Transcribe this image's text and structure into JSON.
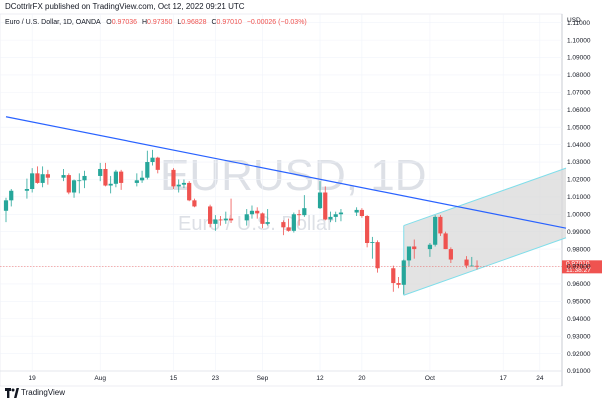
{
  "header": {
    "published_text": "DCottrlrFX published on TradingView.com, Oct 12, 2022 09:21 UTC"
  },
  "legend": {
    "symbol": "Euro / U.S. Dollar, 1D, OANDA",
    "o_label": "O",
    "o_value": "0.97036",
    "h_label": "H",
    "h_value": "0.97350",
    "l_label": "L",
    "l_value": "0.96828",
    "c_label": "C",
    "c_value": "0.97010",
    "change": "−0.00026 (−0.03%)"
  },
  "watermark": {
    "ticker": "EURUSD, 1D",
    "description": "Euro / U.S. Dollar"
  },
  "footer": {
    "brand": "TradingView"
  },
  "colors": {
    "up": "#26a69a",
    "down": "#ef5350",
    "trendline": "#2962ff",
    "channel": "#80deea",
    "channel_fill": "#d9d9d9",
    "price_label": "#ef5350"
  },
  "chart_data": {
    "type": "candlestick",
    "y_axis_currency": "USD",
    "ylim": [
      0.91,
      1.115
    ],
    "y_ticks": [
      0.91,
      0.92,
      0.93,
      0.94,
      0.95,
      0.96,
      0.97,
      0.98,
      0.99,
      1.0,
      1.01,
      1.02,
      1.03,
      1.04,
      1.05,
      1.06,
      1.07,
      1.08,
      1.09,
      1.1,
      1.11
    ],
    "y_tick_labels": [
      "0.91000",
      "0.92000",
      "0.93000",
      "0.94000",
      "0.95000",
      "0.96000",
      "0.97000",
      "0.98000",
      "0.99000",
      "1.00000",
      "1.01000",
      "1.02000",
      "1.03000",
      "1.04000",
      "1.05000",
      "1.06000",
      "1.07000",
      "1.08000",
      "1.09000",
      "1.10000",
      "1.11000"
    ],
    "x_ticks": [
      {
        "label": "19",
        "date": "2022-07-19"
      },
      {
        "label": "Aug",
        "date": "2022-08-01"
      },
      {
        "label": "15",
        "date": "2022-08-15"
      },
      {
        "label": "23",
        "date": "2022-08-23"
      },
      {
        "label": "Sep",
        "date": "2022-09-01"
      },
      {
        "label": "12",
        "date": "2022-09-12"
      },
      {
        "label": "20",
        "date": "2022-09-20"
      },
      {
        "label": "Oct",
        "date": "2022-10-03"
      },
      {
        "label": "17",
        "date": "2022-10-17"
      },
      {
        "label": "24",
        "date": "2022-10-24"
      }
    ],
    "x_range": [
      "2022-07-14",
      "2022-10-29"
    ],
    "candles": [
      {
        "date": "2022-07-14",
        "o": 1.002,
        "h": 1.0095,
        "l": 0.9955,
        "c": 1.008
      },
      {
        "date": "2022-07-15",
        "o": 1.008,
        "h": 1.0145,
        "l": 1.0045,
        "c": 1.0135
      },
      {
        "date": "2022-07-18",
        "o": 1.0135,
        "h": 1.0205,
        "l": 1.009,
        "c": 1.0145
      },
      {
        "date": "2022-07-19",
        "o": 1.0145,
        "h": 1.0265,
        "l": 1.0125,
        "c": 1.0235
      },
      {
        "date": "2022-07-20",
        "o": 1.0235,
        "h": 1.0275,
        "l": 1.0175,
        "c": 1.018
      },
      {
        "date": "2022-07-21",
        "o": 1.018,
        "h": 1.0275,
        "l": 1.0155,
        "c": 1.023
      },
      {
        "date": "2022-07-22",
        "o": 1.023,
        "h": 1.0255,
        "l": 1.017,
        "c": 1.021
      },
      {
        "date": "2022-07-25",
        "o": 1.021,
        "h": 1.026,
        "l": 1.019,
        "c": 1.0225
      },
      {
        "date": "2022-07-26",
        "o": 1.0225,
        "h": 1.0235,
        "l": 1.0115,
        "c": 1.0125
      },
      {
        "date": "2022-07-27",
        "o": 1.0125,
        "h": 1.02,
        "l": 1.0095,
        "c": 1.0195
      },
      {
        "date": "2022-07-28",
        "o": 1.0195,
        "h": 1.0235,
        "l": 1.012,
        "c": 1.0195
      },
      {
        "date": "2022-07-29",
        "o": 1.0195,
        "h": 1.025,
        "l": 1.015,
        "c": 1.022
      },
      {
        "date": "2022-08-01",
        "o": 1.022,
        "h": 1.0295,
        "l": 1.019,
        "c": 1.026
      },
      {
        "date": "2022-08-02",
        "o": 1.026,
        "h": 1.0295,
        "l": 1.016,
        "c": 1.0165
      },
      {
        "date": "2022-08-03",
        "o": 1.0165,
        "h": 1.022,
        "l": 1.012,
        "c": 1.0175
      },
      {
        "date": "2022-08-04",
        "o": 1.0175,
        "h": 1.0255,
        "l": 1.0155,
        "c": 1.0245
      },
      {
        "date": "2022-08-05",
        "o": 1.0245,
        "h": 1.0255,
        "l": 1.014,
        "c": 1.018
      },
      {
        "date": "2022-08-08",
        "o": 1.018,
        "h": 1.0235,
        "l": 1.016,
        "c": 1.0195
      },
      {
        "date": "2022-08-09",
        "o": 1.0195,
        "h": 1.025,
        "l": 1.018,
        "c": 1.021
      },
      {
        "date": "2022-08-10",
        "o": 1.021,
        "h": 1.0365,
        "l": 1.02,
        "c": 1.03
      },
      {
        "date": "2022-08-11",
        "o": 1.03,
        "h": 1.037,
        "l": 1.028,
        "c": 1.0325
      },
      {
        "date": "2022-08-12",
        "o": 1.0325,
        "h": 1.033,
        "l": 1.0235,
        "c": 1.0255
      },
      {
        "date": "2022-08-15",
        "o": 1.0255,
        "h": 1.0265,
        "l": 1.0145,
        "c": 1.016
      },
      {
        "date": "2022-08-16",
        "o": 1.016,
        "h": 1.02,
        "l": 1.0125,
        "c": 1.017
      },
      {
        "date": "2022-08-17",
        "o": 1.017,
        "h": 1.02,
        "l": 1.015,
        "c": 1.018
      },
      {
        "date": "2022-08-18",
        "o": 1.018,
        "h": 1.019,
        "l": 1.0075,
        "c": 1.008
      },
      {
        "date": "2022-08-19",
        "o": 1.008,
        "h": 1.009,
        "l": 1.004,
        "c": 1.0045
      },
      {
        "date": "2022-08-22",
        "o": 1.0045,
        "h": 1.0055,
        "l": 0.9925,
        "c": 0.9945
      },
      {
        "date": "2022-08-23",
        "o": 0.9945,
        "h": 0.9995,
        "l": 0.9905,
        "c": 0.997
      },
      {
        "date": "2022-08-24",
        "o": 0.997,
        "h": 0.999,
        "l": 0.9935,
        "c": 0.9965
      },
      {
        "date": "2022-08-25",
        "o": 0.9965,
        "h": 1.0015,
        "l": 0.9945,
        "c": 0.9975
      },
      {
        "date": "2022-08-26",
        "o": 0.9975,
        "h": 1.009,
        "l": 0.995,
        "c": 0.9965
      },
      {
        "date": "2022-08-29",
        "o": 0.9965,
        "h": 1.003,
        "l": 0.9935,
        "c": 1.0
      },
      {
        "date": "2022-08-30",
        "o": 1.0,
        "h": 1.005,
        "l": 0.9975,
        "c": 1.002
      },
      {
        "date": "2022-08-31",
        "o": 1.002,
        "h": 1.004,
        "l": 0.9975,
        "c": 1.0005
      },
      {
        "date": "2022-09-01",
        "o": 1.0005,
        "h": 1.001,
        "l": 0.992,
        "c": 0.9945
      },
      {
        "date": "2022-09-02",
        "o": 0.9945,
        "h": 1.003,
        "l": 0.9935,
        "c": 0.9955
      },
      {
        "date": "2022-09-05",
        "o": 0.9955,
        "h": 0.9965,
        "l": 0.988,
        "c": 0.9925
      },
      {
        "date": "2022-09-06",
        "o": 0.9925,
        "h": 0.9975,
        "l": 0.99,
        "c": 0.9905
      },
      {
        "date": "2022-09-07",
        "o": 0.9905,
        "h": 1.001,
        "l": 0.9895,
        "c": 1.0
      },
      {
        "date": "2022-09-08",
        "o": 1.0,
        "h": 1.0025,
        "l": 0.9935,
        "c": 0.9995
      },
      {
        "date": "2022-09-09",
        "o": 0.9995,
        "h": 1.011,
        "l": 0.9985,
        "c": 1.0035
      },
      {
        "date": "2022-09-12",
        "o": 1.0035,
        "h": 1.019,
        "l": 1.003,
        "c": 1.0125
      },
      {
        "date": "2022-09-13",
        "o": 1.0125,
        "h": 1.016,
        "l": 0.9965,
        "c": 0.997
      },
      {
        "date": "2022-09-14",
        "o": 0.997,
        "h": 1.0015,
        "l": 0.9955,
        "c": 0.9985
      },
      {
        "date": "2022-09-15",
        "o": 0.9985,
        "h": 1.0015,
        "l": 0.9955,
        "c": 1.0
      },
      {
        "date": "2022-09-16",
        "o": 1.0,
        "h": 1.003,
        "l": 0.996,
        "c": 1.001
      },
      {
        "date": "2022-09-19",
        "o": 1.001,
        "h": 1.004,
        "l": 0.999,
        "c": 1.0025
      },
      {
        "date": "2022-09-20",
        "o": 1.0025,
        "h": 1.0035,
        "l": 0.998,
        "c": 0.999
      },
      {
        "date": "2022-09-21",
        "o": 0.999,
        "h": 0.9995,
        "l": 0.981,
        "c": 0.9835
      },
      {
        "date": "2022-09-22",
        "o": 0.9835,
        "h": 0.987,
        "l": 0.9745,
        "c": 0.984
      },
      {
        "date": "2022-09-23",
        "o": 0.984,
        "h": 0.985,
        "l": 0.9665,
        "c": 0.969
      },
      {
        "date": "2022-09-26",
        "o": 0.969,
        "h": 0.9705,
        "l": 0.9555,
        "c": 0.9605
      },
      {
        "date": "2022-09-27",
        "o": 0.9605,
        "h": 0.964,
        "l": 0.9575,
        "c": 0.9595
      },
      {
        "date": "2022-09-28",
        "o": 0.9595,
        "h": 0.974,
        "l": 0.954,
        "c": 0.9735
      },
      {
        "date": "2022-09-29",
        "o": 0.9735,
        "h": 0.9815,
        "l": 0.97,
        "c": 0.9815
      },
      {
        "date": "2022-09-30",
        "o": 0.9815,
        "h": 0.9855,
        "l": 0.9745,
        "c": 0.98
      },
      {
        "date": "2022-10-03",
        "o": 0.98,
        "h": 0.9835,
        "l": 0.9755,
        "c": 0.9825
      },
      {
        "date": "2022-10-04",
        "o": 0.9825,
        "h": 0.9995,
        "l": 0.9815,
        "c": 0.9985
      },
      {
        "date": "2022-10-05",
        "o": 0.9985,
        "h": 0.9995,
        "l": 0.9875,
        "c": 0.989
      },
      {
        "date": "2022-10-06",
        "o": 0.989,
        "h": 0.99,
        "l": 0.98,
        "c": 0.98
      },
      {
        "date": "2022-10-07",
        "o": 0.98,
        "h": 0.981,
        "l": 0.972,
        "c": 0.974
      },
      {
        "date": "2022-10-10",
        "o": 0.974,
        "h": 0.976,
        "l": 0.969,
        "c": 0.9705
      },
      {
        "date": "2022-10-11",
        "o": 0.9705,
        "h": 0.9755,
        "l": 0.97,
        "c": 0.9705
      },
      {
        "date": "2022-10-12",
        "o": 0.9704,
        "h": 0.9735,
        "l": 0.9683,
        "c": 0.9701
      }
    ],
    "trendline": {
      "start": {
        "date": "2022-07-14",
        "price": 1.056
      },
      "end": {
        "date": "2022-10-29",
        "price": 0.992
      }
    },
    "channel": {
      "upper": {
        "start": {
          "date": "2022-09-28",
          "price": 0.9935
        },
        "end": {
          "date": "2022-10-29",
          "price": 1.0265
        }
      },
      "lower": {
        "start": {
          "date": "2022-09-28",
          "price": 0.9535
        },
        "end": {
          "date": "2022-10-29",
          "price": 0.9865
        }
      }
    },
    "last_price": {
      "value": 0.9701,
      "label": "0.97010",
      "countdown": "11:38:27"
    }
  }
}
